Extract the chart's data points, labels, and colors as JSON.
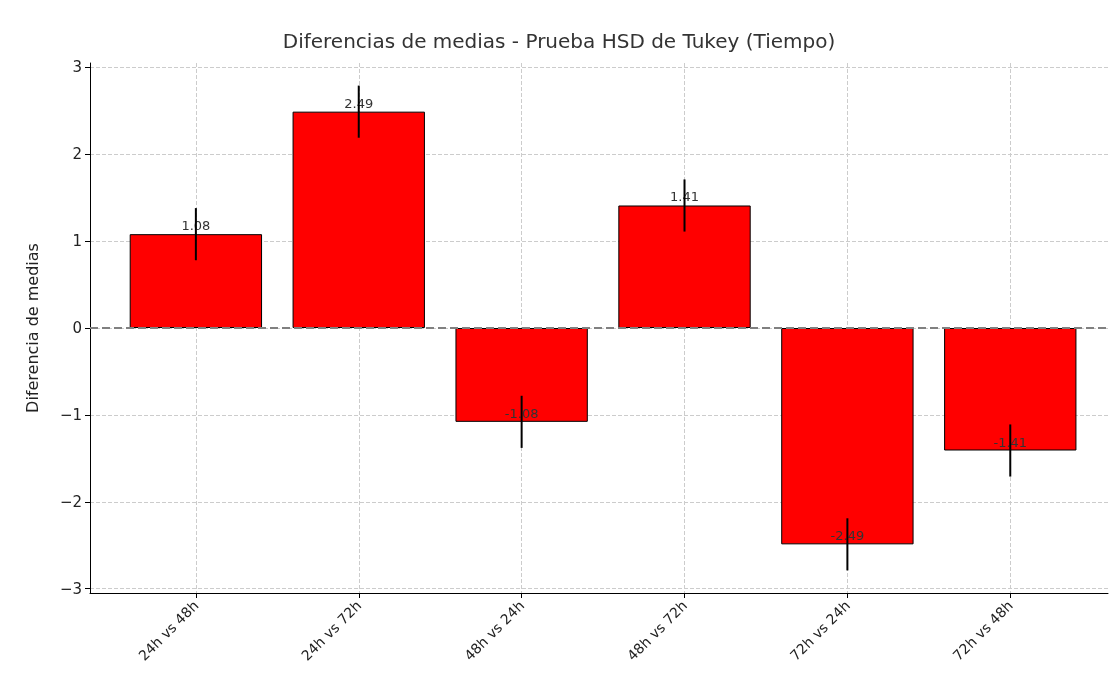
{
  "chart_data": {
    "type": "bar",
    "title": "Diferencias de medias - Prueba HSD de Tukey (Tiempo)",
    "ylabel": "Diferencia de medias",
    "categories": [
      "24h vs 48h",
      "24h vs 72h",
      "48h vs 24h",
      "48h vs 72h",
      "72h vs 24h",
      "72h vs 48h"
    ],
    "values": [
      1.08,
      2.49,
      -1.08,
      1.41,
      -2.49,
      -1.41
    ],
    "errors": [
      0.3,
      0.3,
      0.3,
      0.3,
      0.3,
      0.3
    ],
    "color": "#ff0000",
    "data_labels": true,
    "ylim": [
      -3.05,
      3.05
    ],
    "yticks": [
      -3,
      -2,
      -1,
      0,
      1,
      2,
      3
    ],
    "ref_lines": [
      {
        "axis": "y",
        "value": 0,
        "label": null,
        "color": "#808080",
        "line_style": "dashed"
      }
    ],
    "grid": true
  }
}
